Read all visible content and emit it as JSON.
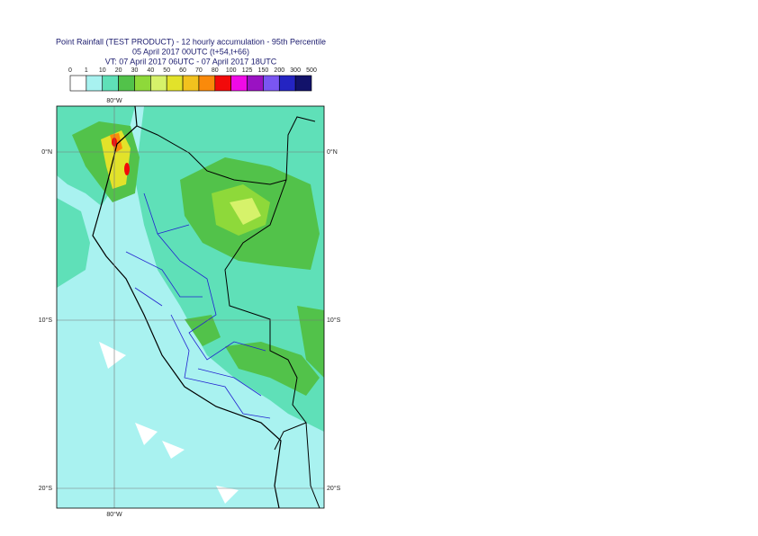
{
  "title": {
    "lines": [
      "Point Rainfall (TEST PRODUCT) - 12 hourly accumulation - 95th Percentile",
      "05 April 2017 00UTC (t+54,t+66)",
      "VT: 07 April 2017 06UTC - 07 April 2017 18UTC"
    ]
  },
  "colorbar": {
    "labels": [
      "0",
      "1",
      "10",
      "20",
      "30",
      "40",
      "50",
      "60",
      "70",
      "80",
      "100",
      "125",
      "150",
      "200",
      "300",
      "500"
    ],
    "colors": [
      "#ffffff",
      "#a8f2f0",
      "#5fe0b8",
      "#52c24a",
      "#8ed93a",
      "#d6f26a",
      "#e2e22a",
      "#f2c21e",
      "#fa8a0a",
      "#f20a0a",
      "#f00ae6",
      "#9a12c2",
      "#7a56f2",
      "#2424c2",
      "#12126a"
    ]
  },
  "map": {
    "lon_labels": {
      "top": "80°W",
      "bottom": "80°W"
    },
    "lat_labels": [
      {
        "left": "0°N",
        "right": "0°N"
      },
      {
        "left": "10°S",
        "right": "10°S"
      },
      {
        "left": "20°S",
        "right": "20°S"
      }
    ]
  }
}
